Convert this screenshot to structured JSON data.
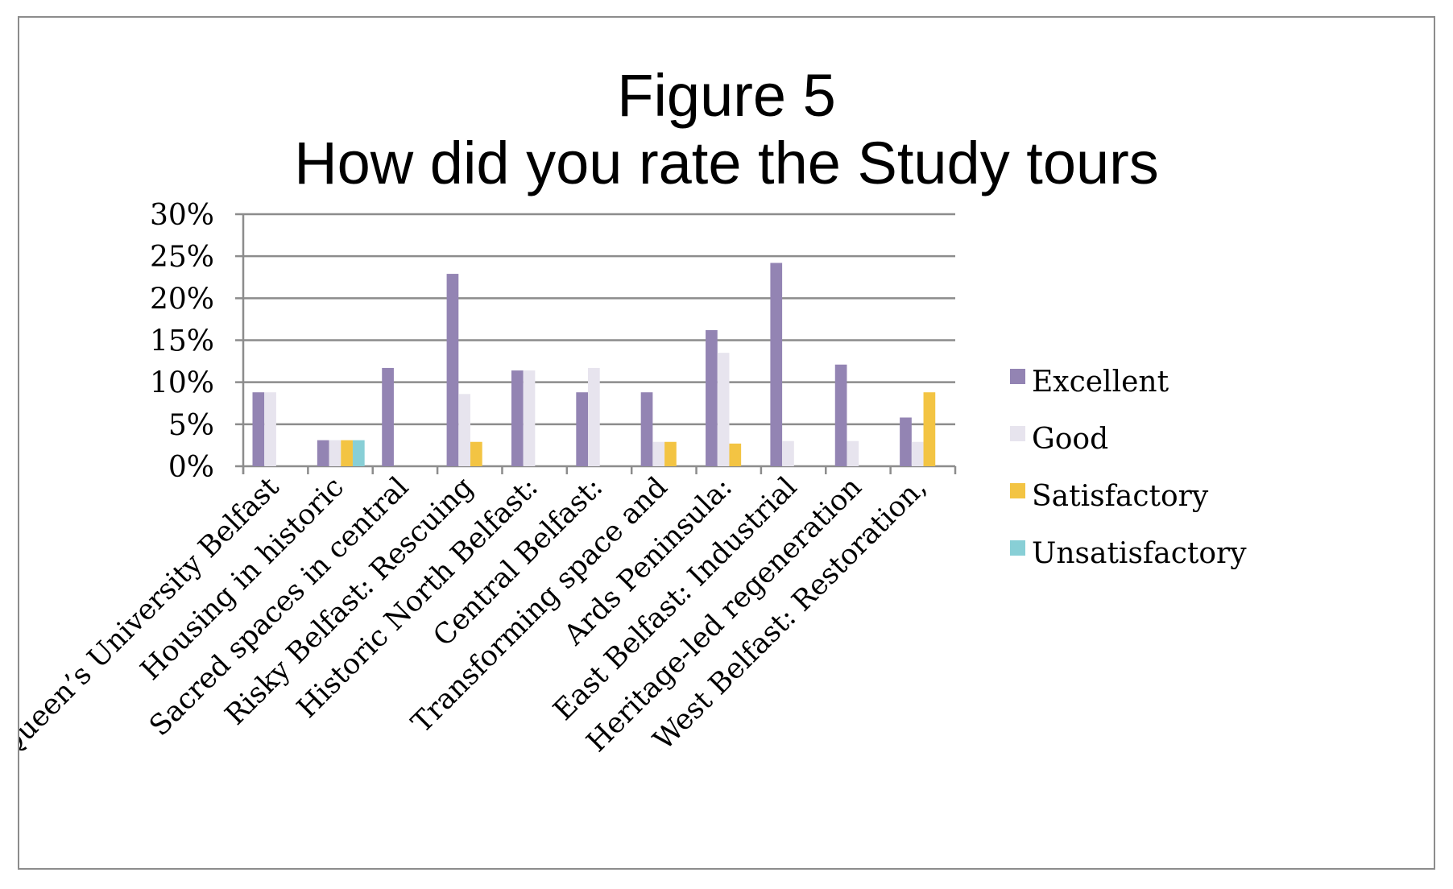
{
  "colors": {
    "Excellent": "#9384b3",
    "Good": "#e7e4ee",
    "Satisfactory": "#f3c443",
    "Unsatisfactory": "#88cfd6",
    "grid": "#8c8c8c"
  },
  "chart_data": {
    "type": "bar",
    "title": "Figure 5",
    "subtitle": "How did you rate the Study tours",
    "categories": [
      "Queen’s University Belfast",
      "Housing in historic",
      "Sacred spaces in central",
      "Risky Belfast: Rescuing",
      "Historic North Belfast:",
      "Central Belfast:",
      "Transforming space and",
      "Ards Peninsula:",
      "East Belfast: Industrial",
      "Heritage-led regeneration",
      "West Belfast: Restoration,"
    ],
    "series": [
      {
        "name": "Excellent",
        "values": [
          8.8,
          3.1,
          11.7,
          22.9,
          11.4,
          8.8,
          8.8,
          16.2,
          24.2,
          12.1,
          5.8
        ]
      },
      {
        "name": "Good",
        "values": [
          8.8,
          3.1,
          0,
          8.6,
          11.4,
          11.7,
          2.9,
          13.5,
          3.0,
          3.0,
          2.9
        ]
      },
      {
        "name": "Satisfactory",
        "values": [
          0,
          3.1,
          0,
          2.9,
          0,
          0,
          2.9,
          2.7,
          0,
          0,
          8.8
        ]
      },
      {
        "name": "Unsatisfactory",
        "values": [
          0,
          3.1,
          0,
          0,
          0,
          0,
          0,
          0,
          0,
          0,
          0
        ]
      }
    ],
    "yticks": [
      "0%",
      "5%",
      "10%",
      "15%",
      "20%",
      "25%",
      "30%"
    ],
    "ylim": [
      0,
      30
    ],
    "xlabel": "",
    "ylabel": "",
    "grid": true,
    "legend": "right"
  }
}
